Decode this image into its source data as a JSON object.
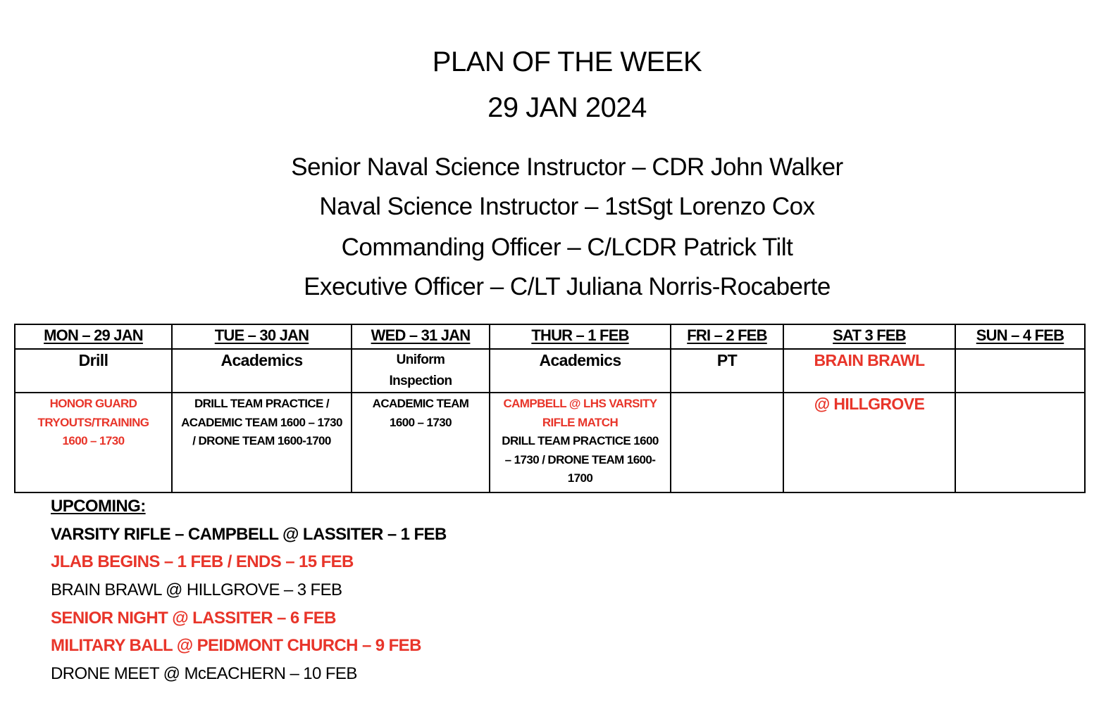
{
  "header": {
    "title": "PLAN OF THE WEEK",
    "date": "29 JAN 2024"
  },
  "staff": [
    "Senior Naval Science Instructor – CDR John Walker",
    "Naval Science Instructor – 1stSgt Lorenzo Cox",
    "Commanding Officer – C/LCDR Patrick Tilt",
    "Executive Officer – C/LT Juliana Norris-Rocaberte"
  ],
  "colors": {
    "highlight": "#e8352a",
    "text": "#000000"
  },
  "schedule": {
    "days": [
      "MON – 29 JAN",
      "TUE – 30 JAN",
      "WED – 31 JAN",
      "THUR – 1 FEB",
      "FRI – 2 FEB",
      "SAT 3 FEB",
      "SUN – 4 FEB"
    ],
    "activities": [
      "Drill",
      "Academics",
      "Uniform Inspection",
      "Academics",
      "PT",
      "BRAIN BRAWL",
      ""
    ],
    "details": {
      "mon": "HONOR GUARD TRYOUTS/TRAINING 1600 – 1730",
      "tue": "DRILL TEAM PRACTICE / ACADEMIC TEAM  1600 – 1730 / DRONE TEAM 1600-1700",
      "wed": "ACADEMIC TEAM 1600 – 1730",
      "thu_red": "CAMPBELL @ LHS VARSITY RIFLE MATCH",
      "thu": "DRILL TEAM PRACTICE 1600 – 1730 / DRONE TEAM 1600-1700",
      "fri": "",
      "sat": "@ HILLGROVE",
      "sun": ""
    }
  },
  "upcoming": {
    "heading": "UPCOMING:",
    "items": [
      "VARSITY RIFLE – CAMPBELL @ LASSITER – 1 FEB",
      "JLAB BEGINS – 1 FEB / ENDS – 15 FEB",
      "BRAIN BRAWL @ HILLGROVE – 3 FEB",
      "SENIOR NIGHT @ LASSITER  – 6 FEB",
      "MILITARY BALL @ PEIDMONT CHURCH – 9 FEB",
      "DRONE MEET @ McEACHERN – 10 FEB"
    ]
  }
}
